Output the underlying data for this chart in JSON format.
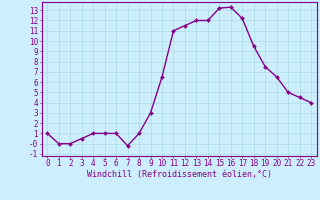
{
  "x": [
    0,
    1,
    2,
    3,
    4,
    5,
    6,
    7,
    8,
    9,
    10,
    11,
    12,
    13,
    14,
    15,
    16,
    17,
    18,
    19,
    20,
    21,
    22,
    23
  ],
  "y": [
    1,
    0,
    0,
    0.5,
    1,
    1,
    1,
    -0.2,
    1,
    3,
    6.5,
    11,
    11.5,
    12,
    12,
    13.2,
    13.3,
    12.2,
    9.5,
    7.5,
    6.5,
    5,
    4.5,
    4
  ],
  "line_color": "#880088",
  "marker": "D",
  "marker_size": 2,
  "bg_color": "#cceeff",
  "grid_color": "#aadddd",
  "axis_color": "#880088",
  "xlabel": "Windchill (Refroidissement éolien,°C)",
  "xlim": [
    -0.5,
    23.5
  ],
  "ylim": [
    -1.2,
    13.8
  ],
  "yticks": [
    -1,
    0,
    1,
    2,
    3,
    4,
    5,
    6,
    7,
    8,
    9,
    10,
    11,
    12,
    13
  ],
  "ytick_labels": [
    "-1",
    "-0",
    "1",
    "2",
    "3",
    "4",
    "5",
    "6",
    "7",
    "8",
    "9",
    "10",
    "11",
    "12",
    "13"
  ],
  "xticks": [
    0,
    1,
    2,
    3,
    4,
    5,
    6,
    7,
    8,
    9,
    10,
    11,
    12,
    13,
    14,
    15,
    16,
    17,
    18,
    19,
    20,
    21,
    22,
    23
  ],
  "tick_label_size": 5.5,
  "xlabel_size": 6.0,
  "line_width": 1.0
}
